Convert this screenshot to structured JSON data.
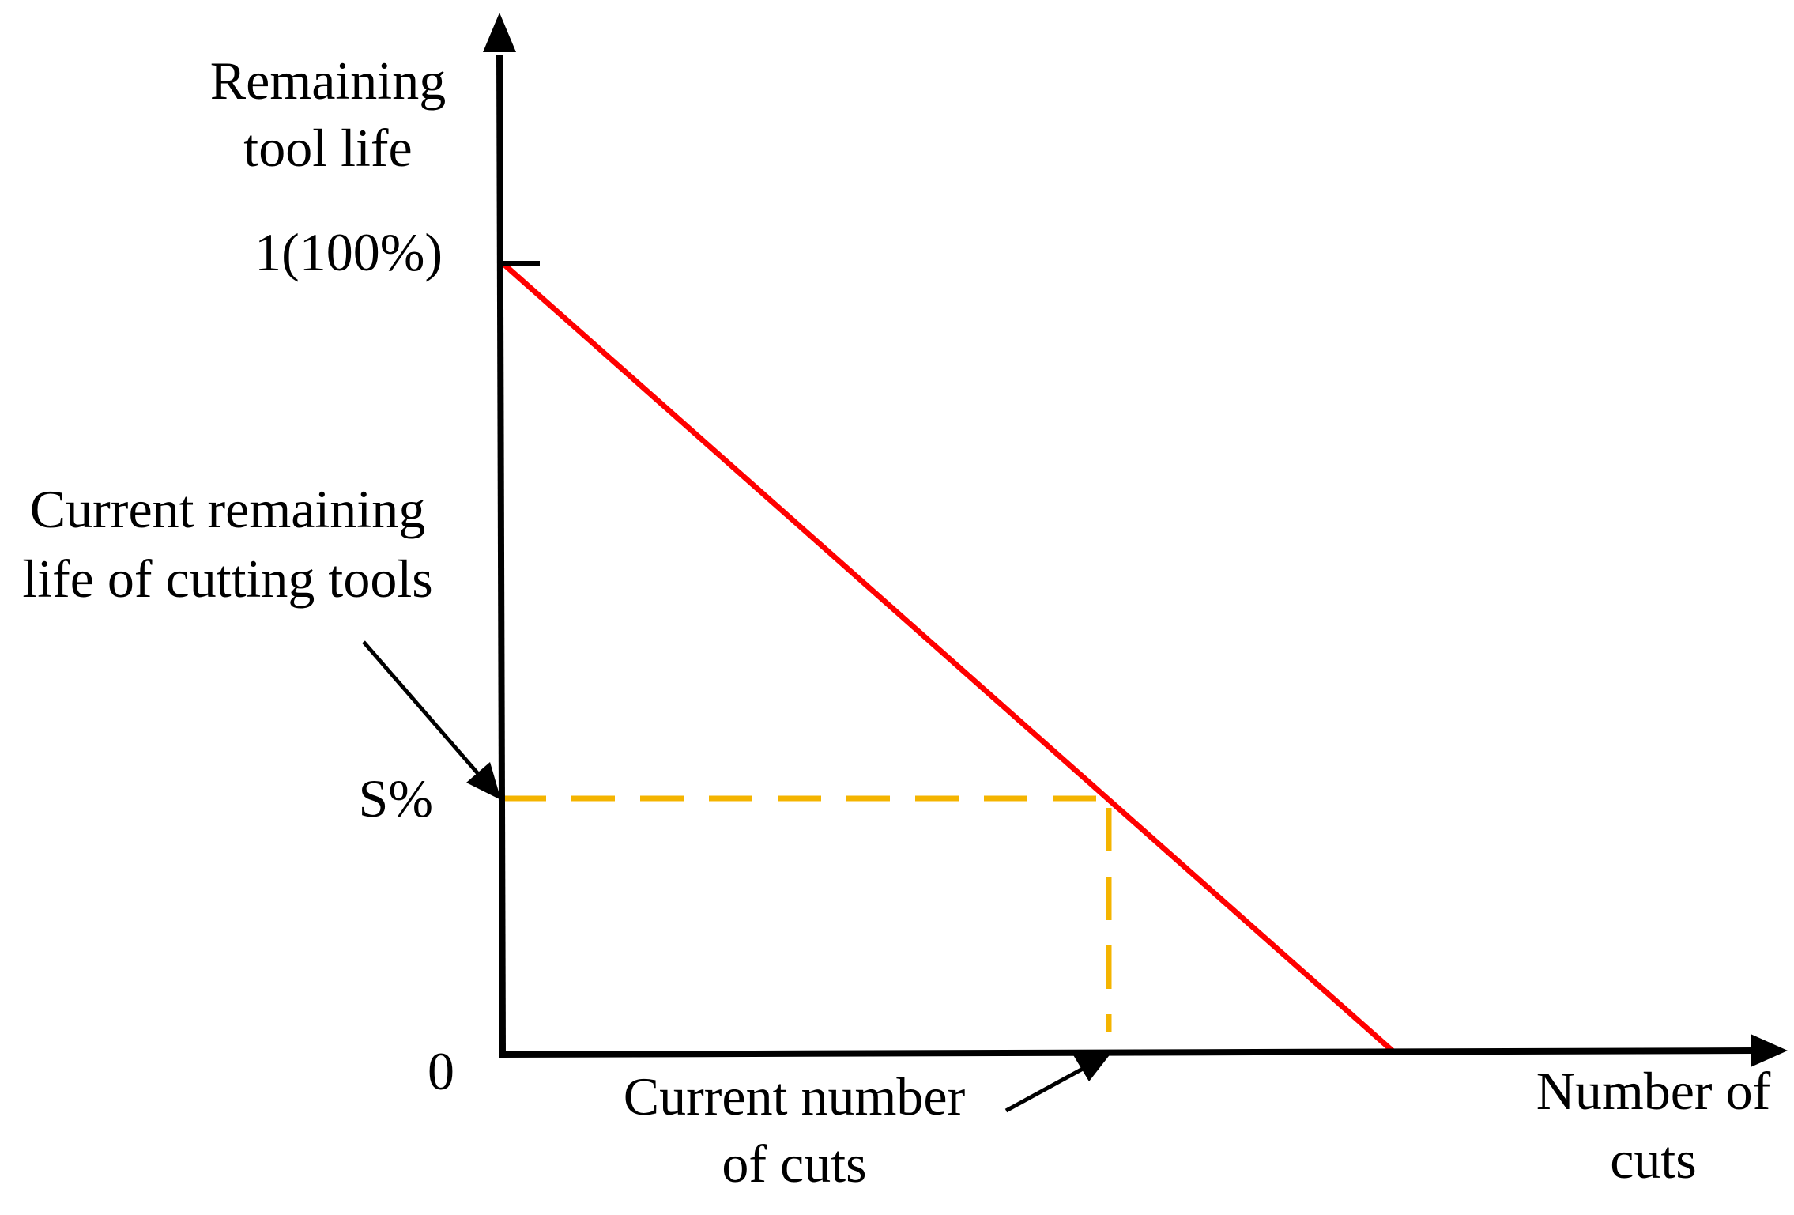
{
  "axes": {
    "y_title_line1": "Remaining",
    "y_title_line2": "tool life",
    "x_title_line1": "Number of",
    "x_title_line2": "cuts",
    "y_top_tick": "1(100%)",
    "y_mid_tick": "S%",
    "origin": "0"
  },
  "annotations": {
    "remaining_line1": "Current remaining",
    "remaining_line2": "life of cutting tools",
    "cuts_line1": "Current number",
    "cuts_line2": "of cuts"
  },
  "colors": {
    "axis": "#000000",
    "life_line": "#ff0000",
    "guide_line": "#f4b400",
    "arrow": "#000000"
  }
}
